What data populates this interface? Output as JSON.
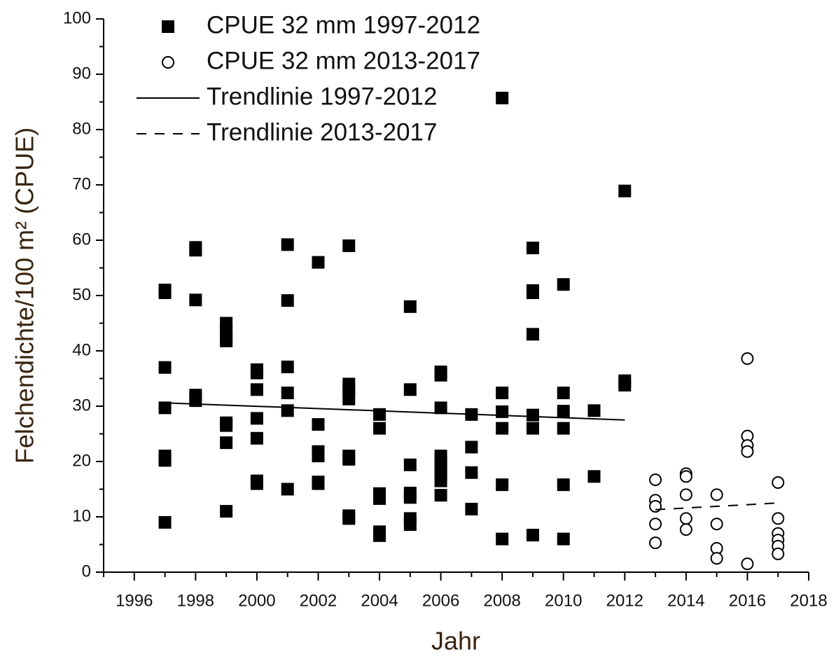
{
  "chart_data": {
    "type": "scatter",
    "x_label": "Jahr",
    "y_label": "Felchendichte/100 m² (CPUE)",
    "xlim": [
      1995,
      2018
    ],
    "ylim": [
      0,
      100
    ],
    "xticks": [
      1996,
      1998,
      2000,
      2002,
      2004,
      2006,
      2008,
      2010,
      2012,
      2014,
      2016,
      2018
    ],
    "xticks_minor": [
      1995,
      1997,
      1999,
      2001,
      2003,
      2005,
      2007,
      2009,
      2011,
      2013,
      2015,
      2017
    ],
    "yticks": [
      0,
      10,
      20,
      30,
      40,
      50,
      60,
      70,
      80,
      90,
      100
    ],
    "yticks_minor": [
      5,
      15,
      25,
      35,
      45,
      55,
      65,
      75,
      85,
      95
    ],
    "grid": false,
    "legend": "upper left",
    "series": [
      {
        "name": "CPUE 32 mm 1997-2012",
        "kind": "points",
        "marker": "square",
        "color": "#000000",
        "x": [
          1997,
          1997,
          1997,
          1997,
          1997,
          1997,
          1997,
          1998,
          1998,
          1998,
          1998,
          1998,
          1999,
          1999,
          1999,
          1999,
          1999,
          1999,
          1999,
          1999,
          2000,
          2000,
          2000,
          2000,
          2000,
          2000,
          2000,
          2001,
          2001,
          2001,
          2001,
          2001,
          2001,
          2002,
          2002,
          2002,
          2002,
          2002,
          2002,
          2003,
          2003,
          2003,
          2003,
          2003,
          2003,
          2003,
          2003,
          2004,
          2004,
          2004,
          2004,
          2004,
          2004,
          2005,
          2005,
          2005,
          2005,
          2005,
          2005,
          2005,
          2006,
          2006,
          2006,
          2006,
          2006,
          2006,
          2006,
          2006,
          2006,
          2007,
          2007,
          2007,
          2007,
          2008,
          2008,
          2008,
          2008,
          2008,
          2008,
          2009,
          2009,
          2009,
          2009,
          2009,
          2009,
          2009,
          2010,
          2010,
          2010,
          2010,
          2010,
          2010,
          2011,
          2011,
          2012,
          2012,
          2012
        ],
        "values": [
          51,
          50.5,
          37,
          29.7,
          21,
          20.2,
          9,
          58.7,
          58.2,
          49.2,
          32,
          31,
          45,
          43.7,
          42.3,
          41.8,
          27,
          26.5,
          23.4,
          11,
          36.6,
          36,
          33,
          27.8,
          24.2,
          16.5,
          16,
          59.2,
          49.1,
          37.1,
          32.4,
          29.2,
          15,
          56,
          26.7,
          21.8,
          21,
          16.3,
          16,
          59,
          34,
          33,
          31.3,
          21,
          20.4,
          10.2,
          9.7,
          28.5,
          26,
          14.2,
          13.3,
          7.3,
          6.6,
          48,
          33,
          19.4,
          14.3,
          13.5,
          9.7,
          8.6,
          36.2,
          35.6,
          29.7,
          21,
          20,
          18.8,
          17.7,
          16.5,
          13.9,
          28.5,
          22.6,
          18,
          11.4,
          85.7,
          32.4,
          29,
          26,
          15.8,
          6,
          58.6,
          50.9,
          50.5,
          43,
          28.4,
          26,
          6.7,
          52,
          32.4,
          29.1,
          26,
          15.8,
          6,
          29.2,
          17.3,
          68.9,
          34.6,
          33.8
        ]
      },
      {
        "name": "CPUE 32 mm 2013-2017",
        "kind": "points",
        "marker": "circle",
        "color": "#000000",
        "x": [
          2013,
          2013,
          2013,
          2013,
          2013,
          2014,
          2014,
          2014,
          2014,
          2014,
          2015,
          2015,
          2015,
          2015,
          2016,
          2016,
          2016,
          2016,
          2016,
          2017,
          2017,
          2017,
          2017,
          2017,
          2017
        ],
        "values": [
          16.7,
          13,
          11.9,
          8.7,
          5.3,
          17.8,
          17.3,
          14,
          9.7,
          7.7,
          14,
          8.7,
          4.3,
          2.5,
          38.6,
          24.6,
          22.9,
          21.8,
          1.5,
          16.2,
          9.7,
          7,
          5.8,
          4.7,
          3.3
        ]
      },
      {
        "name": "Trendlinie 1997-2012",
        "kind": "line",
        "dash": "solid",
        "color": "#000000",
        "x": [
          1997,
          2012
        ],
        "values": [
          30.6,
          27.5
        ]
      },
      {
        "name": "Trendlinie 2013-2017",
        "kind": "line",
        "dash": "dashed",
        "color": "#000000",
        "x": [
          2013,
          2017
        ],
        "values": [
          11.3,
          12.5
        ]
      }
    ]
  }
}
